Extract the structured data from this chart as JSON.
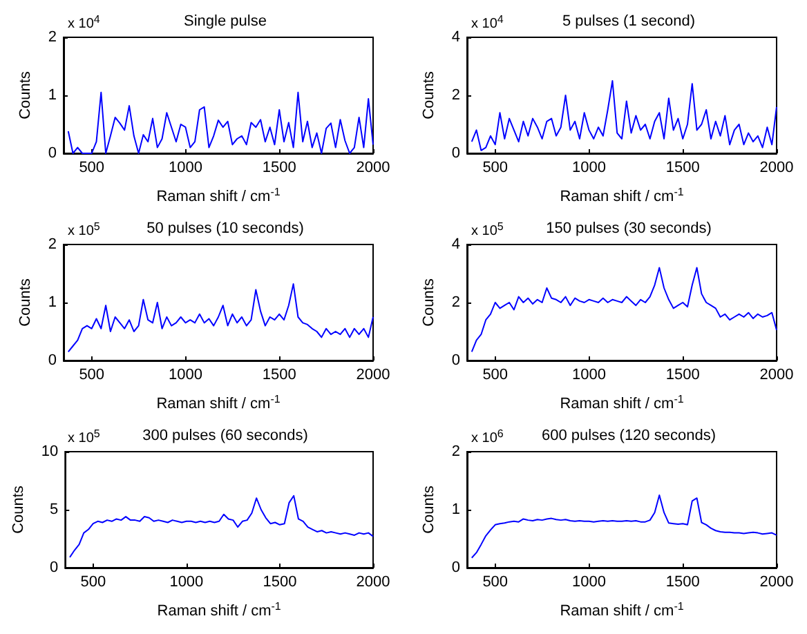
{
  "chart_data": [
    {
      "type": "line",
      "title": "Single pulse",
      "xlabel": "Raman shift / cm$^{-1}$",
      "ylabel": "Counts",
      "annotations": [
        "x 10$^{4}$"
      ],
      "color": "#0000ff",
      "xlim": [
        350,
        2000
      ],
      "xticks": [
        500,
        1000,
        1500,
        2000
      ],
      "ylim": [
        0,
        2
      ],
      "yticks": [
        0,
        1,
        2
      ],
      "x": [
        375,
        400,
        425,
        450,
        475,
        500,
        525,
        550,
        575,
        600,
        625,
        650,
        675,
        700,
        725,
        750,
        775,
        800,
        825,
        850,
        875,
        900,
        925,
        950,
        975,
        1000,
        1025,
        1050,
        1075,
        1100,
        1125,
        1150,
        1175,
        1200,
        1225,
        1250,
        1275,
        1300,
        1325,
        1350,
        1375,
        1400,
        1425,
        1450,
        1475,
        1500,
        1525,
        1550,
        1575,
        1600,
        1625,
        1650,
        1675,
        1700,
        1725,
        1750,
        1775,
        1800,
        1825,
        1850,
        1875,
        1900,
        1925,
        1950,
        1975,
        2000
      ],
      "values": [
        0.38,
        0,
        0.1,
        0,
        0,
        0,
        0.2,
        1.05,
        0,
        0.3,
        0.62,
        0.52,
        0.4,
        0.82,
        0.3,
        0,
        0.32,
        0.2,
        0.6,
        0.1,
        0.25,
        0.7,
        0.45,
        0.2,
        0.5,
        0.45,
        0.1,
        0.2,
        0.75,
        0.8,
        0.1,
        0.3,
        0.57,
        0.45,
        0.55,
        0.15,
        0.25,
        0.3,
        0.15,
        0.53,
        0.45,
        0.58,
        0.2,
        0.45,
        0.15,
        0.75,
        0.2,
        0.53,
        0.1,
        1.05,
        0.2,
        0.55,
        0.1,
        0.35,
        0,
        0.43,
        0.52,
        0.1,
        0.58,
        0.22,
        0,
        0.1,
        0.62,
        0.1,
        0.94,
        0.15
      ]
    },
    {
      "type": "line",
      "title": "5 pulses (1 second)",
      "xlabel": "Raman shift / cm$^{-1}$",
      "ylabel": "Counts",
      "annotations": [
        "x 10$^{4}$"
      ],
      "color": "#0000ff",
      "xlim": [
        350,
        2000
      ],
      "xticks": [
        500,
        1000,
        1500,
        2000
      ],
      "ylim": [
        0,
        4
      ],
      "yticks": [
        0,
        2,
        4
      ],
      "x": [
        375,
        400,
        425,
        450,
        475,
        500,
        525,
        550,
        575,
        600,
        625,
        650,
        675,
        700,
        725,
        750,
        775,
        800,
        825,
        850,
        875,
        900,
        925,
        950,
        975,
        1000,
        1025,
        1050,
        1075,
        1100,
        1125,
        1150,
        1175,
        1200,
        1225,
        1250,
        1275,
        1300,
        1325,
        1350,
        1375,
        1400,
        1425,
        1450,
        1475,
        1500,
        1525,
        1550,
        1575,
        1600,
        1625,
        1650,
        1675,
        1700,
        1725,
        1750,
        1775,
        1800,
        1825,
        1850,
        1875,
        1900,
        1925,
        1950,
        1975,
        2000
      ],
      "values": [
        0.4,
        0.8,
        0.1,
        0.2,
        0.6,
        0.3,
        1.4,
        0.5,
        1.2,
        0.8,
        0.4,
        1.1,
        0.6,
        1.2,
        0.9,
        0.5,
        1.1,
        1.2,
        0.6,
        0.9,
        2.0,
        0.8,
        1.1,
        0.5,
        1.4,
        0.8,
        0.5,
        0.9,
        0.6,
        1.5,
        2.5,
        0.7,
        0.5,
        1.8,
        0.7,
        1.3,
        0.8,
        1.0,
        0.5,
        1.1,
        1.4,
        0.5,
        1.9,
        0.8,
        1.2,
        0.5,
        1.0,
        2.4,
        0.8,
        1.0,
        1.5,
        0.5,
        1.1,
        0.6,
        1.3,
        0.3,
        0.8,
        1.0,
        0.3,
        0.7,
        0.4,
        0.6,
        0.2,
        0.9,
        0.3,
        1.6
      ]
    },
    {
      "type": "line",
      "title": "50 pulses (10 seconds)",
      "xlabel": "Raman shift / cm$^{-1}$",
      "ylabel": "Counts",
      "annotations": [
        "x 10$^{5}$"
      ],
      "color": "#0000ff",
      "xlim": [
        350,
        2000
      ],
      "xticks": [
        500,
        1000,
        1500,
        2000
      ],
      "ylim": [
        0,
        2
      ],
      "yticks": [
        0,
        1,
        2
      ],
      "x": [
        375,
        400,
        425,
        450,
        475,
        500,
        525,
        550,
        575,
        600,
        625,
        650,
        675,
        700,
        725,
        750,
        775,
        800,
        825,
        850,
        875,
        900,
        925,
        950,
        975,
        1000,
        1025,
        1050,
        1075,
        1100,
        1125,
        1150,
        1175,
        1200,
        1225,
        1250,
        1275,
        1300,
        1325,
        1350,
        1375,
        1400,
        1425,
        1450,
        1475,
        1500,
        1525,
        1550,
        1575,
        1600,
        1625,
        1650,
        1675,
        1700,
        1725,
        1750,
        1775,
        1800,
        1825,
        1850,
        1875,
        1900,
        1925,
        1950,
        1975,
        2000
      ],
      "values": [
        0.15,
        0.25,
        0.35,
        0.55,
        0.6,
        0.55,
        0.72,
        0.55,
        0.95,
        0.5,
        0.75,
        0.65,
        0.55,
        0.7,
        0.5,
        0.6,
        1.05,
        0.7,
        0.65,
        1.0,
        0.55,
        0.75,
        0.6,
        0.65,
        0.75,
        0.65,
        0.7,
        0.65,
        0.8,
        0.65,
        0.72,
        0.6,
        0.75,
        0.95,
        0.6,
        0.8,
        0.65,
        0.75,
        0.6,
        0.7,
        1.22,
        0.85,
        0.6,
        0.75,
        0.7,
        0.8,
        0.7,
        0.95,
        1.32,
        0.75,
        0.65,
        0.62,
        0.55,
        0.5,
        0.4,
        0.55,
        0.45,
        0.5,
        0.45,
        0.55,
        0.4,
        0.55,
        0.45,
        0.55,
        0.4,
        0.75
      ]
    },
    {
      "type": "line",
      "title": "150 pulses (30 seconds)",
      "xlabel": "Raman shift / cm$^{-1}$",
      "ylabel": "Counts",
      "annotations": [
        "x 10$^{5}$"
      ],
      "color": "#0000ff",
      "xlim": [
        350,
        2000
      ],
      "xticks": [
        500,
        1000,
        1500,
        2000
      ],
      "ylim": [
        0,
        4
      ],
      "yticks": [
        0,
        2,
        4
      ],
      "x": [
        375,
        400,
        425,
        450,
        475,
        500,
        525,
        550,
        575,
        600,
        625,
        650,
        675,
        700,
        725,
        750,
        775,
        800,
        825,
        850,
        875,
        900,
        925,
        950,
        975,
        1000,
        1025,
        1050,
        1075,
        1100,
        1125,
        1150,
        1175,
        1200,
        1225,
        1250,
        1275,
        1300,
        1325,
        1350,
        1375,
        1400,
        1425,
        1450,
        1475,
        1500,
        1525,
        1550,
        1575,
        1600,
        1625,
        1650,
        1675,
        1700,
        1725,
        1750,
        1775,
        1800,
        1825,
        1850,
        1875,
        1900,
        1925,
        1950,
        1975,
        2000
      ],
      "values": [
        0.3,
        0.7,
        0.9,
        1.4,
        1.6,
        2.0,
        1.8,
        1.9,
        2.0,
        1.75,
        2.2,
        2.0,
        2.15,
        1.95,
        2.1,
        2.0,
        2.5,
        2.15,
        2.1,
        2.0,
        2.2,
        1.9,
        2.15,
        2.05,
        2.0,
        2.1,
        2.05,
        2.0,
        2.15,
        2.0,
        2.1,
        2.05,
        2.0,
        2.2,
        2.05,
        1.9,
        2.1,
        2.0,
        2.2,
        2.6,
        3.2,
        2.5,
        2.1,
        1.8,
        1.9,
        2.0,
        1.85,
        2.6,
        3.2,
        2.3,
        2.0,
        1.9,
        1.8,
        1.5,
        1.6,
        1.4,
        1.5,
        1.6,
        1.5,
        1.65,
        1.45,
        1.6,
        1.5,
        1.55,
        1.65,
        1.05
      ]
    },
    {
      "type": "line",
      "title": "300 pulses (60 seconds)",
      "xlabel": "Raman shift / cm$^{-1}$",
      "ylabel": "Counts",
      "annotations": [
        "x 10$^{5}$"
      ],
      "color": "#0000ff",
      "xlim": [
        350,
        2000
      ],
      "xticks": [
        500,
        1000,
        1500,
        2000
      ],
      "ylim": [
        0,
        10
      ],
      "yticks": [
        0,
        5,
        10
      ],
      "x": [
        375,
        400,
        425,
        450,
        475,
        500,
        525,
        550,
        575,
        600,
        625,
        650,
        675,
        700,
        725,
        750,
        775,
        800,
        825,
        850,
        875,
        900,
        925,
        950,
        975,
        1000,
        1025,
        1050,
        1075,
        1100,
        1125,
        1150,
        1175,
        1200,
        1225,
        1250,
        1275,
        1300,
        1325,
        1350,
        1375,
        1400,
        1425,
        1450,
        1475,
        1500,
        1525,
        1550,
        1575,
        1600,
        1625,
        1650,
        1675,
        1700,
        1725,
        1750,
        1775,
        1800,
        1825,
        1850,
        1875,
        1900,
        1925,
        1950,
        1975,
        2000
      ],
      "values": [
        0.9,
        1.5,
        2.0,
        3.0,
        3.3,
        3.8,
        4.0,
        3.9,
        4.1,
        4.0,
        4.2,
        4.1,
        4.4,
        4.1,
        4.1,
        4.0,
        4.4,
        4.3,
        4.0,
        4.1,
        4.0,
        3.9,
        4.1,
        4.0,
        3.9,
        4.0,
        4.0,
        3.9,
        4.0,
        3.9,
        4.0,
        3.9,
        4.0,
        4.6,
        4.2,
        4.1,
        3.5,
        4.0,
        4.1,
        4.7,
        6.0,
        5.0,
        4.3,
        3.8,
        3.9,
        3.7,
        3.8,
        5.6,
        6.2,
        4.2,
        4.0,
        3.5,
        3.3,
        3.1,
        3.2,
        3.0,
        3.1,
        3.0,
        2.9,
        3.0,
        2.9,
        2.8,
        3.0,
        2.9,
        3.0,
        2.7
      ]
    },
    {
      "type": "line",
      "title": "600 pulses (120 seconds)",
      "xlabel": "Raman shift / cm$^{-1}$",
      "ylabel": "Counts",
      "annotations": [
        "x 10$^{6}$"
      ],
      "color": "#0000ff",
      "xlim": [
        350,
        2000
      ],
      "xticks": [
        500,
        1000,
        1500,
        2000
      ],
      "ylim": [
        0,
        2
      ],
      "yticks": [
        0,
        1,
        2
      ],
      "x": [
        375,
        400,
        425,
        450,
        475,
        500,
        525,
        550,
        575,
        600,
        625,
        650,
        675,
        700,
        725,
        750,
        775,
        800,
        825,
        850,
        875,
        900,
        925,
        950,
        975,
        1000,
        1025,
        1050,
        1075,
        1100,
        1125,
        1150,
        1175,
        1200,
        1225,
        1250,
        1275,
        1300,
        1325,
        1350,
        1375,
        1400,
        1425,
        1450,
        1475,
        1500,
        1525,
        1550,
        1575,
        1600,
        1625,
        1650,
        1675,
        1700,
        1725,
        1750,
        1775,
        1800,
        1825,
        1850,
        1875,
        1900,
        1925,
        1950,
        1975,
        2000
      ],
      "values": [
        0.17,
        0.26,
        0.4,
        0.55,
        0.65,
        0.74,
        0.76,
        0.77,
        0.79,
        0.8,
        0.79,
        0.84,
        0.82,
        0.81,
        0.83,
        0.82,
        0.84,
        0.85,
        0.83,
        0.82,
        0.83,
        0.81,
        0.8,
        0.81,
        0.8,
        0.8,
        0.79,
        0.8,
        0.81,
        0.8,
        0.81,
        0.8,
        0.8,
        0.81,
        0.8,
        0.81,
        0.79,
        0.79,
        0.82,
        0.95,
        1.25,
        0.95,
        0.77,
        0.76,
        0.75,
        0.76,
        0.74,
        1.15,
        1.2,
        0.78,
        0.74,
        0.68,
        0.64,
        0.62,
        0.61,
        0.61,
        0.6,
        0.6,
        0.59,
        0.6,
        0.61,
        0.6,
        0.58,
        0.59,
        0.6,
        0.56
      ]
    }
  ]
}
